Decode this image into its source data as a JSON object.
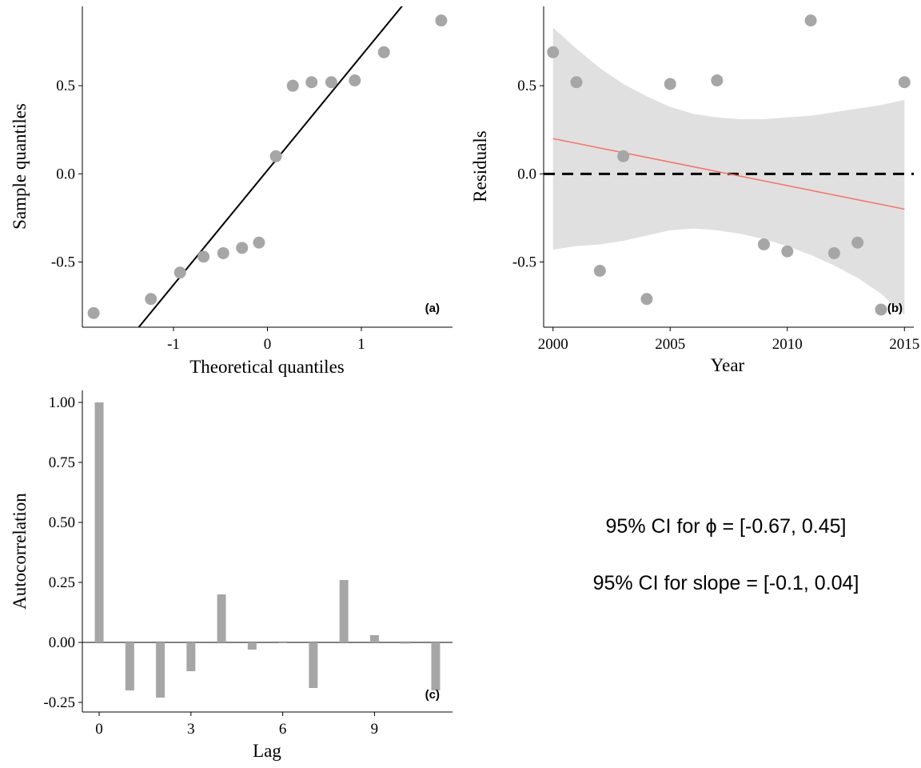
{
  "chart_data": [
    {
      "type": "scatter",
      "panel_tag": "(a)",
      "xlabel": "Theoretical quantiles",
      "ylabel": "Sample quantiles",
      "xlim": [
        -1.97,
        1.97
      ],
      "ylim": [
        -0.87,
        0.95
      ],
      "xticks": [
        -1,
        0,
        1
      ],
      "xtick_labels": [
        "-1",
        "0",
        "1"
      ],
      "yticks": [
        -0.5,
        0.0,
        0.5
      ],
      "ytick_labels": [
        "-0.5",
        "0.0",
        "0.5"
      ],
      "grid": false,
      "point_color": "#A6A6A6",
      "line_color": "#000000",
      "points": [
        {
          "x": -1.85,
          "y": -0.79
        },
        {
          "x": -1.24,
          "y": -0.71
        },
        {
          "x": -0.93,
          "y": -0.56
        },
        {
          "x": -0.68,
          "y": -0.47
        },
        {
          "x": -0.47,
          "y": -0.45
        },
        {
          "x": -0.27,
          "y": -0.42
        },
        {
          "x": -0.09,
          "y": -0.39
        },
        {
          "x": 0.09,
          "y": 0.1
        },
        {
          "x": 0.27,
          "y": 0.5
        },
        {
          "x": 0.47,
          "y": 0.52
        },
        {
          "x": 0.68,
          "y": 0.52
        },
        {
          "x": 0.93,
          "y": 0.53
        },
        {
          "x": 1.24,
          "y": 0.69
        },
        {
          "x": 1.85,
          "y": 0.87
        }
      ],
      "reference_line": {
        "intercept": 0.02,
        "slope": 0.65
      }
    },
    {
      "type": "scatter",
      "panel_tag": "(b)",
      "xlabel": "Year",
      "ylabel": "Residuals",
      "xlim": [
        1999.6,
        2015.4
      ],
      "ylim": [
        -0.87,
        0.95
      ],
      "xticks": [
        2000,
        2005,
        2010,
        2015
      ],
      "xtick_labels": [
        "2000",
        "2005",
        "2010",
        "2015"
      ],
      "yticks": [
        -0.5,
        0.0,
        0.5
      ],
      "ytick_labels": [
        "-0.5",
        "0.0",
        "0.5"
      ],
      "grid": false,
      "point_color": "#A6A6A6",
      "points": [
        {
          "x": 2000,
          "y": 0.69
        },
        {
          "x": 2001,
          "y": 0.52
        },
        {
          "x": 2002,
          "y": -0.55
        },
        {
          "x": 2003,
          "y": 0.1
        },
        {
          "x": 2004,
          "y": -0.71
        },
        {
          "x": 2005,
          "y": 0.51
        },
        {
          "x": 2007,
          "y": 0.53
        },
        {
          "x": 2009,
          "y": -0.4
        },
        {
          "x": 2010,
          "y": -0.44
        },
        {
          "x": 2011,
          "y": 0.87
        },
        {
          "x": 2012,
          "y": -0.45
        },
        {
          "x": 2013,
          "y": -0.39
        },
        {
          "x": 2014,
          "y": -0.77
        },
        {
          "x": 2015,
          "y": 0.52
        }
      ],
      "trend_line": {
        "color": "#F8766D",
        "x": [
          2000,
          2015
        ],
        "y": [
          0.2,
          -0.2
        ]
      },
      "confidence_band": {
        "color": "#E0E0E0",
        "x": [
          2000,
          2001,
          2002,
          2003,
          2004,
          2005,
          2006,
          2007,
          2008,
          2009,
          2010,
          2011,
          2012,
          2013,
          2014,
          2015
        ],
        "upper": [
          0.83,
          0.71,
          0.6,
          0.51,
          0.44,
          0.38,
          0.34,
          0.32,
          0.31,
          0.31,
          0.32,
          0.33,
          0.35,
          0.37,
          0.39,
          0.42
        ],
        "lower": [
          -0.43,
          -0.41,
          -0.4,
          -0.38,
          -0.35,
          -0.32,
          -0.31,
          -0.32,
          -0.34,
          -0.37,
          -0.41,
          -0.46,
          -0.52,
          -0.59,
          -0.68,
          -0.8
        ]
      },
      "zero_line": {
        "y": 0,
        "style": "dashed",
        "color": "#000000"
      }
    },
    {
      "type": "bar",
      "panel_tag": "(c)",
      "xlabel": "Lag",
      "ylabel": "Autocorrelation",
      "xlim": [
        -0.55,
        11.55
      ],
      "ylim": [
        -0.29,
        1.05
      ],
      "xticks": [
        0,
        3,
        6,
        9
      ],
      "xtick_labels": [
        "0",
        "3",
        "6",
        "9"
      ],
      "yticks": [
        -0.25,
        0.0,
        0.25,
        0.5,
        0.75,
        1.0
      ],
      "ytick_labels": [
        "-0.25",
        "0.00",
        "0.25",
        "0.50",
        "0.75",
        "1.00"
      ],
      "grid": false,
      "bar_color": "#A6A6A6",
      "categories": [
        0,
        1,
        2,
        3,
        4,
        5,
        6,
        7,
        8,
        9,
        10,
        11
      ],
      "values": [
        1.0,
        -0.2,
        -0.23,
        -0.12,
        0.2,
        -0.03,
        0.0,
        -0.19,
        0.26,
        0.03,
        -0.005,
        -0.2
      ]
    }
  ],
  "annotations": {
    "ci_phi": "95% CI for ϕ =  [-0.67, 0.45]",
    "ci_slope": "95% CI for slope =  [-0.1, 0.04]"
  }
}
